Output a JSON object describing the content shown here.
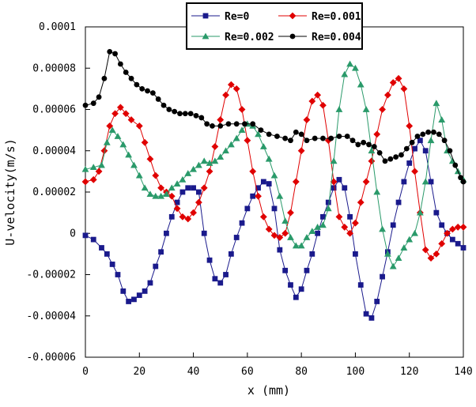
{
  "chart_data": {
    "type": "line",
    "title": "",
    "xlabel": "x (mm)",
    "ylabel": "U-velocity(m/s)",
    "xlim": [
      0,
      140
    ],
    "ylim": [
      -6e-05,
      0.0001
    ],
    "xticks": [
      "0",
      "20",
      "40",
      "60",
      "80",
      "100",
      "120",
      "140"
    ],
    "yticks": [
      "0.0001",
      "0.00008",
      "0.00006",
      "0.00004",
      "0.00002",
      "0",
      "-0.00002",
      "-0.00004",
      "-0.00006"
    ],
    "grid": false,
    "legend_position": "top-center",
    "series": [
      {
        "name": "Re=0",
        "color": "#1a1a8c",
        "marker": "square",
        "points": [
          [
            0,
            -1e-06
          ],
          [
            3,
            -3e-06
          ],
          [
            6,
            -7e-06
          ],
          [
            8,
            -1e-05
          ],
          [
            10,
            -1.5e-05
          ],
          [
            12,
            -2e-05
          ],
          [
            14,
            -2.8e-05
          ],
          [
            16,
            -3.3e-05
          ],
          [
            18,
            -3.2e-05
          ],
          [
            20,
            -3e-05
          ],
          [
            22,
            -2.8e-05
          ],
          [
            24,
            -2.4e-05
          ],
          [
            26,
            -1.6e-05
          ],
          [
            28,
            -9e-06
          ],
          [
            30,
            0.0
          ],
          [
            32,
            8e-06
          ],
          [
            34,
            1.5e-05
          ],
          [
            36,
            2e-05
          ],
          [
            38,
            2.2e-05
          ],
          [
            40,
            2.2e-05
          ],
          [
            42,
            2e-05
          ],
          [
            44,
            0.0
          ],
          [
            46,
            -1.3e-05
          ],
          [
            48,
            -2.2e-05
          ],
          [
            50,
            -2.4e-05
          ],
          [
            52,
            -2e-05
          ],
          [
            54,
            -1e-05
          ],
          [
            56,
            -2e-06
          ],
          [
            58,
            5e-06
          ],
          [
            60,
            1.2e-05
          ],
          [
            62,
            1.8e-05
          ],
          [
            64,
            2.2e-05
          ],
          [
            66,
            2.5e-05
          ],
          [
            68,
            2.4e-05
          ],
          [
            70,
            1.2e-05
          ],
          [
            72,
            -8e-06
          ],
          [
            74,
            -1.8e-05
          ],
          [
            76,
            -2.5e-05
          ],
          [
            78,
            -3.1e-05
          ],
          [
            80,
            -2.7e-05
          ],
          [
            82,
            -1.8e-05
          ],
          [
            84,
            -1e-05
          ],
          [
            86,
            0.0
          ],
          [
            88,
            8e-06
          ],
          [
            90,
            1.5e-05
          ],
          [
            92,
            2.2e-05
          ],
          [
            94,
            2.6e-05
          ],
          [
            96,
            2.2e-05
          ],
          [
            98,
            8e-06
          ],
          [
            100,
            -1e-05
          ],
          [
            102,
            -2.5e-05
          ],
          [
            104,
            -3.9e-05
          ],
          [
            106,
            -4.1e-05
          ],
          [
            108,
            -3.3e-05
          ],
          [
            110,
            -2.1e-05
          ],
          [
            112,
            -9e-06
          ],
          [
            114,
            4e-06
          ],
          [
            116,
            1.5e-05
          ],
          [
            118,
            2.5e-05
          ],
          [
            120,
            3.4e-05
          ],
          [
            122,
            4.1e-05
          ],
          [
            124,
            4.5e-05
          ],
          [
            126,
            4e-05
          ],
          [
            128,
            2.5e-05
          ],
          [
            130,
            1e-05
          ],
          [
            132,
            4e-06
          ],
          [
            134,
            0.0
          ],
          [
            136,
            -3e-06
          ],
          [
            138,
            -5e-06
          ],
          [
            140,
            -7e-06
          ]
        ]
      },
      {
        "name": "Re=0.001",
        "color": "#e00000",
        "marker": "diamond",
        "points": [
          [
            0,
            2.5e-05
          ],
          [
            3,
            2.6e-05
          ],
          [
            5,
            3e-05
          ],
          [
            7,
            4e-05
          ],
          [
            9,
            5.2e-05
          ],
          [
            11,
            5.8e-05
          ],
          [
            13,
            6.1e-05
          ],
          [
            15,
            5.8e-05
          ],
          [
            17,
            5.5e-05
          ],
          [
            20,
            5.2e-05
          ],
          [
            22,
            4.4e-05
          ],
          [
            24,
            3.6e-05
          ],
          [
            26,
            2.8e-05
          ],
          [
            28,
            2.2e-05
          ],
          [
            30,
            2e-05
          ],
          [
            32,
            1.8e-05
          ],
          [
            34,
            1.2e-05
          ],
          [
            36,
            8e-06
          ],
          [
            38,
            7e-06
          ],
          [
            40,
            1e-05
          ],
          [
            42,
            1.5e-05
          ],
          [
            44,
            2.2e-05
          ],
          [
            46,
            3e-05
          ],
          [
            48,
            4.2e-05
          ],
          [
            50,
            5.5e-05
          ],
          [
            52,
            6.7e-05
          ],
          [
            54,
            7.2e-05
          ],
          [
            56,
            7e-05
          ],
          [
            58,
            6e-05
          ],
          [
            60,
            4.5e-05
          ],
          [
            62,
            3e-05
          ],
          [
            64,
            1.8e-05
          ],
          [
            66,
            8e-06
          ],
          [
            68,
            2e-06
          ],
          [
            70,
            -1e-06
          ],
          [
            72,
            -2e-06
          ],
          [
            74,
            0.0
          ],
          [
            76,
            1e-05
          ],
          [
            78,
            2.5e-05
          ],
          [
            80,
            4e-05
          ],
          [
            82,
            5.5e-05
          ],
          [
            84,
            6.4e-05
          ],
          [
            86,
            6.7e-05
          ],
          [
            88,
            6.2e-05
          ],
          [
            90,
            4.5e-05
          ],
          [
            92,
            2.5e-05
          ],
          [
            94,
            8e-06
          ],
          [
            96,
            3e-06
          ],
          [
            98,
            0.0
          ],
          [
            100,
            5e-06
          ],
          [
            102,
            1.5e-05
          ],
          [
            104,
            2.5e-05
          ],
          [
            106,
            3.5e-05
          ],
          [
            108,
            4.8e-05
          ],
          [
            110,
            6e-05
          ],
          [
            112,
            6.7e-05
          ],
          [
            114,
            7.3e-05
          ],
          [
            116,
            7.5e-05
          ],
          [
            118,
            7e-05
          ],
          [
            120,
            5.2e-05
          ],
          [
            122,
            3e-05
          ],
          [
            124,
            1e-05
          ],
          [
            126,
            -8e-06
          ],
          [
            128,
            -1.2e-05
          ],
          [
            130,
            -1e-05
          ],
          [
            132,
            -5e-06
          ],
          [
            134,
            0.0
          ],
          [
            136,
            2e-06
          ],
          [
            138,
            3e-06
          ],
          [
            140,
            3e-06
          ]
        ]
      },
      {
        "name": "Re=0.002",
        "color": "#2a9a6a",
        "marker": "triangle",
        "points": [
          [
            0,
            3.1e-05
          ],
          [
            3,
            3.2e-05
          ],
          [
            6,
            3.3e-05
          ],
          [
            8,
            4.4e-05
          ],
          [
            10,
            5e-05
          ],
          [
            12,
            4.7e-05
          ],
          [
            14,
            4.3e-05
          ],
          [
            16,
            3.8e-05
          ],
          [
            18,
            3.3e-05
          ],
          [
            20,
            2.8e-05
          ],
          [
            22,
            2.2e-05
          ],
          [
            24,
            1.9e-05
          ],
          [
            26,
            1.8e-05
          ],
          [
            28,
            1.8e-05
          ],
          [
            30,
            1.9e-05
          ],
          [
            32,
            2.2e-05
          ],
          [
            34,
            2.4e-05
          ],
          [
            36,
            2.6e-05
          ],
          [
            38,
            2.9e-05
          ],
          [
            40,
            3.1e-05
          ],
          [
            42,
            3.3e-05
          ],
          [
            44,
            3.5e-05
          ],
          [
            46,
            3.4e-05
          ],
          [
            48,
            3.5e-05
          ],
          [
            50,
            3.7e-05
          ],
          [
            52,
            4e-05
          ],
          [
            54,
            4.3e-05
          ],
          [
            56,
            4.6e-05
          ],
          [
            58,
            5e-05
          ],
          [
            60,
            5.3e-05
          ],
          [
            62,
            5.2e-05
          ],
          [
            64,
            4.8e-05
          ],
          [
            66,
            4.2e-05
          ],
          [
            68,
            3.6e-05
          ],
          [
            70,
            2.8e-05
          ],
          [
            72,
            1.8e-05
          ],
          [
            74,
            6e-06
          ],
          [
            76,
            -2e-06
          ],
          [
            78,
            -6e-06
          ],
          [
            80,
            -6e-06
          ],
          [
            82,
            -2e-06
          ],
          [
            84,
            1e-06
          ],
          [
            86,
            3e-06
          ],
          [
            88,
            4e-06
          ],
          [
            90,
            1.2e-05
          ],
          [
            92,
            3.5e-05
          ],
          [
            94,
            6e-05
          ],
          [
            96,
            7.7e-05
          ],
          [
            98,
            8.2e-05
          ],
          [
            100,
            8e-05
          ],
          [
            102,
            7.2e-05
          ],
          [
            104,
            6e-05
          ],
          [
            106,
            4e-05
          ],
          [
            108,
            2e-05
          ],
          [
            110,
            2e-06
          ],
          [
            112,
            -1e-05
          ],
          [
            114,
            -1.6e-05
          ],
          [
            116,
            -1.2e-05
          ],
          [
            118,
            -7e-06
          ],
          [
            120,
            -3e-06
          ],
          [
            122,
            0.0
          ],
          [
            124,
            1e-05
          ],
          [
            126,
            2.5e-05
          ],
          [
            128,
            4.5e-05
          ],
          [
            130,
            6.3e-05
          ],
          [
            132,
            5.5e-05
          ],
          [
            134,
            4e-05
          ],
          [
            136,
            3.5e-05
          ],
          [
            138,
            3e-05
          ],
          [
            140,
            2.6e-05
          ]
        ]
      },
      {
        "name": "Re=0.004",
        "color": "#000000",
        "marker": "circle",
        "points": [
          [
            0,
            6.2e-05
          ],
          [
            3,
            6.3e-05
          ],
          [
            5,
            6.6e-05
          ],
          [
            7,
            7.5e-05
          ],
          [
            9,
            8.8e-05
          ],
          [
            11,
            8.7e-05
          ],
          [
            13,
            8.2e-05
          ],
          [
            15,
            7.8e-05
          ],
          [
            17,
            7.5e-05
          ],
          [
            19,
            7.2e-05
          ],
          [
            21,
            7e-05
          ],
          [
            23,
            6.9e-05
          ],
          [
            25,
            6.8e-05
          ],
          [
            27,
            6.5e-05
          ],
          [
            29,
            6.2e-05
          ],
          [
            31,
            6e-05
          ],
          [
            33,
            5.9e-05
          ],
          [
            35,
            5.8e-05
          ],
          [
            37,
            5.8e-05
          ],
          [
            39,
            5.8e-05
          ],
          [
            41,
            5.7e-05
          ],
          [
            43,
            5.6e-05
          ],
          [
            45,
            5.3e-05
          ],
          [
            47,
            5.2e-05
          ],
          [
            50,
            5.2e-05
          ],
          [
            53,
            5.3e-05
          ],
          [
            56,
            5.3e-05
          ],
          [
            59,
            5.3e-05
          ],
          [
            62,
            5.3e-05
          ],
          [
            65,
            5e-05
          ],
          [
            68,
            4.8e-05
          ],
          [
            71,
            4.7e-05
          ],
          [
            74,
            4.6e-05
          ],
          [
            76,
            4.5e-05
          ],
          [
            78,
            4.9e-05
          ],
          [
            80,
            4.8e-05
          ],
          [
            82,
            4.5e-05
          ],
          [
            85,
            4.6e-05
          ],
          [
            88,
            4.6e-05
          ],
          [
            91,
            4.6e-05
          ],
          [
            94,
            4.7e-05
          ],
          [
            97,
            4.7e-05
          ],
          [
            99,
            4.5e-05
          ],
          [
            101,
            4.3e-05
          ],
          [
            103,
            4.4e-05
          ],
          [
            105,
            4.3e-05
          ],
          [
            107,
            4.2e-05
          ],
          [
            109,
            3.9e-05
          ],
          [
            111,
            3.5e-05
          ],
          [
            113,
            3.6e-05
          ],
          [
            115,
            3.7e-05
          ],
          [
            117,
            3.8e-05
          ],
          [
            119,
            4.1e-05
          ],
          [
            121,
            4.4e-05
          ],
          [
            123,
            4.7e-05
          ],
          [
            125,
            4.8e-05
          ],
          [
            127,
            4.9e-05
          ],
          [
            129,
            4.9e-05
          ],
          [
            131,
            4.8e-05
          ],
          [
            133,
            4.5e-05
          ],
          [
            135,
            4e-05
          ],
          [
            137,
            3.3e-05
          ],
          [
            139,
            2.7e-05
          ],
          [
            140,
            2.5e-05
          ]
        ]
      }
    ]
  }
}
